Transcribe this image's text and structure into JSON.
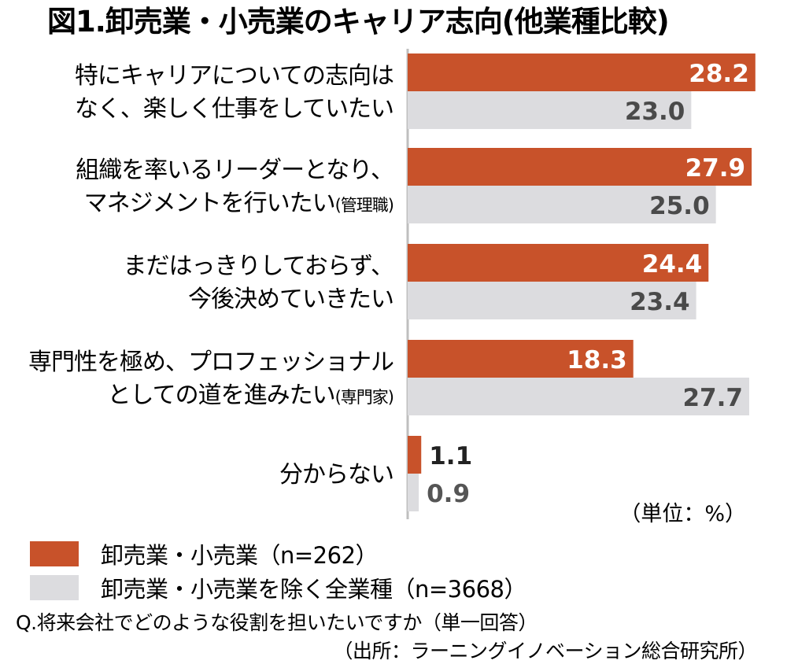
{
  "chart_data": {
    "type": "bar",
    "orientation": "horizontal",
    "title": "図1.卸売業・小売業のキャリア志向(他業種比較)",
    "categories": [
      {
        "lines": [
          "特にキャリアについての志向は",
          "なく、楽しく仕事をしていたい"
        ],
        "suffix": ""
      },
      {
        "lines": [
          "組織を率いるリーダーとなり、",
          "マネジメントを行いたい"
        ],
        "suffix": "(管理職)"
      },
      {
        "lines": [
          "まだはっきりしておらず、",
          "今後決めていきたい"
        ],
        "suffix": ""
      },
      {
        "lines": [
          "専門性を極め、プロフェッショナル",
          "としての道を進みたい"
        ],
        "suffix": "(専門家)"
      },
      {
        "lines": [
          "分からない"
        ],
        "suffix": ""
      }
    ],
    "series": [
      {
        "name": "卸売業・小売業（n=262）",
        "color": "#c8522a",
        "labels": [
          "28.2",
          "27.9",
          "24.4",
          "18.3",
          "1.1"
        ],
        "values": [
          28.2,
          27.9,
          24.4,
          18.3,
          1.1
        ]
      },
      {
        "name": "卸売業・小売業を除く全業種（n=3668）",
        "color": "#dcdcdf",
        "labels": [
          "23.0",
          "25.0",
          "23.4",
          "27.7",
          "0.9"
        ],
        "values": [
          23.0,
          25.0,
          23.4,
          27.7,
          0.9
        ]
      }
    ],
    "xlim": [
      0,
      30
    ],
    "unit_label": "（単位：%）",
    "legend_position": "bottom-left",
    "grid": false
  },
  "footnote": {
    "question": "Q.将来会社でどのような役割を担いたいですか（単一回答）",
    "source": "（出所：ラーニングイノベーション総合研究所）"
  },
  "colors": {
    "text": "#111111",
    "label_inside": "#ffffff",
    "label_outside_primary": "#222222",
    "label_outside_secondary": "#555555",
    "axis": "#bfbfbf"
  }
}
